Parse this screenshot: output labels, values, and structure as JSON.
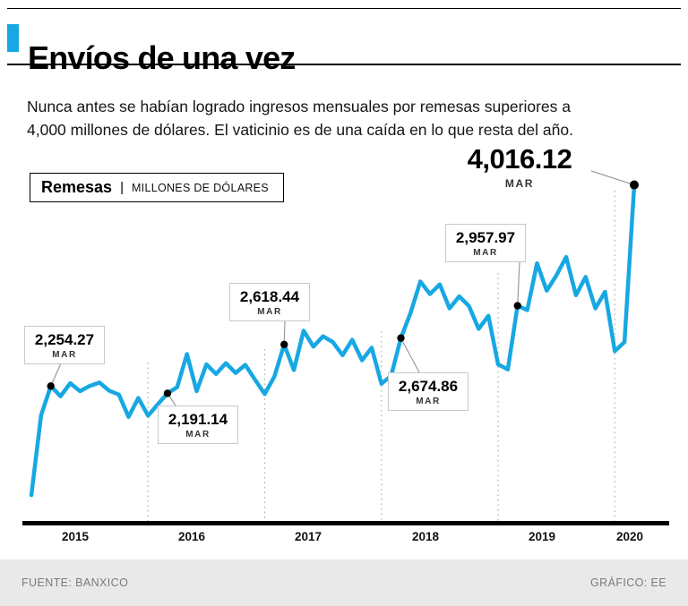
{
  "header": {
    "title": "Envíos de una vez",
    "subtitle_line1": "Nunca antes se habían logrado ingresos mensuales por remesas superiores a",
    "subtitle_line2": "4,000 millones de dólares. El vaticinio es de una caída en lo que resta del año."
  },
  "legend": {
    "series_name": "Remesas",
    "separator": "|",
    "units": "MILLONES DE DÓLARES"
  },
  "callouts": [
    {
      "value": "2,254.27",
      "month": "MAR"
    },
    {
      "value": "2,191.14",
      "month": "MAR"
    },
    {
      "value": "2,618.44",
      "month": "MAR"
    },
    {
      "value": "2,674.86",
      "month": "MAR"
    },
    {
      "value": "2,957.97",
      "month": "MAR"
    },
    {
      "value": "4,016.12",
      "month": "MAR"
    }
  ],
  "footer": {
    "source": "FUENTE: BANXICO",
    "credit": "GRÁFICO: EE"
  },
  "colors": {
    "accent": "#17a8e3",
    "line": "#17a8e3",
    "grid": "#ababab",
    "pointer": "#9b9b9b",
    "footer_bg": "#e9e9e9"
  },
  "chart_data": {
    "type": "line",
    "title": "Remesas",
    "units_label": "Millones de dólares",
    "x_start": "2015-01",
    "x_freq": "monthly",
    "x_end": "2020-03",
    "year_labels": [
      "2015",
      "2016",
      "2017",
      "2018",
      "2019",
      "2020"
    ],
    "grid": "vertical-dashed-at-year-start",
    "legend_position": "top-left",
    "ylim": [
      1050,
      4420
    ],
    "series": [
      {
        "name": "Remesas",
        "values": [
          1300,
          2000,
          2254.27,
          2165,
          2280,
          2210,
          2255,
          2285,
          2215,
          2180,
          1985,
          2150,
          1995,
          2095,
          2191.14,
          2245,
          2535,
          2210,
          2445,
          2360,
          2455,
          2370,
          2440,
          2310,
          2185,
          2340,
          2618.44,
          2395,
          2740,
          2600,
          2690,
          2640,
          2525,
          2660,
          2480,
          2590,
          2275,
          2345,
          2674.86,
          2895,
          3170,
          3060,
          3145,
          2935,
          3040,
          2955,
          2755,
          2870,
          2445,
          2400,
          2957.97,
          2920,
          3330,
          3090,
          3225,
          3385,
          3050,
          3210,
          2935,
          3080,
          2560,
          2640,
          4016.12
        ]
      }
    ],
    "annotated_points": [
      {
        "x": "2015-03",
        "value": 2254.27,
        "label": "MAR"
      },
      {
        "x": "2016-03",
        "value": 2191.14,
        "label": "MAR"
      },
      {
        "x": "2017-03",
        "value": 2618.44,
        "label": "MAR"
      },
      {
        "x": "2018-03",
        "value": 2674.86,
        "label": "MAR"
      },
      {
        "x": "2019-03",
        "value": 2957.97,
        "label": "MAR"
      },
      {
        "x": "2020-03",
        "value": 4016.12,
        "label": "MAR"
      }
    ]
  }
}
